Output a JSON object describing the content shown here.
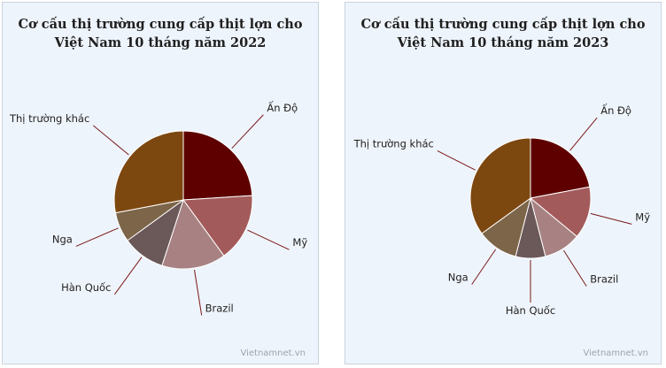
{
  "chart_data": [
    {
      "type": "pie",
      "title_lines": [
        "Cơ cấu thị trường cung cấp thịt lợn cho",
        "Việt Nam 10 tháng năm 2022"
      ],
      "slices": [
        {
          "label": "Ấn Độ",
          "value": 24,
          "color": "#5e0000"
        },
        {
          "label": "Mỹ",
          "value": 16,
          "color": "#a35a5a"
        },
        {
          "label": "Brazil",
          "value": 15,
          "color": "#a88282"
        },
        {
          "label": "Hàn Quốc",
          "value": 10,
          "color": "#6b5858"
        },
        {
          "label": "Nga",
          "value": 7,
          "color": "#7c6548"
        },
        {
          "label": "Thị trường khác",
          "value": 28,
          "color": "#7d4710"
        }
      ],
      "watermark": "Vietnamnet.vn"
    },
    {
      "type": "pie",
      "title_lines": [
        "Cơ cấu thị trường cung cấp thịt lợn cho",
        "Việt Nam 10 tháng năm 2023"
      ],
      "slices": [
        {
          "label": "Ấn Độ",
          "value": 22,
          "color": "#5e0000"
        },
        {
          "label": "Mỹ",
          "value": 14,
          "color": "#a35a5a"
        },
        {
          "label": "Brazil",
          "value": 10,
          "color": "#a88282"
        },
        {
          "label": "Hàn Quốc",
          "value": 8,
          "color": "#6b5858"
        },
        {
          "label": "Nga",
          "value": 11,
          "color": "#7c6548"
        },
        {
          "label": "Thị trường khác",
          "value": 35,
          "color": "#7d4710"
        }
      ],
      "watermark": "Vietnamnet.vn"
    }
  ]
}
